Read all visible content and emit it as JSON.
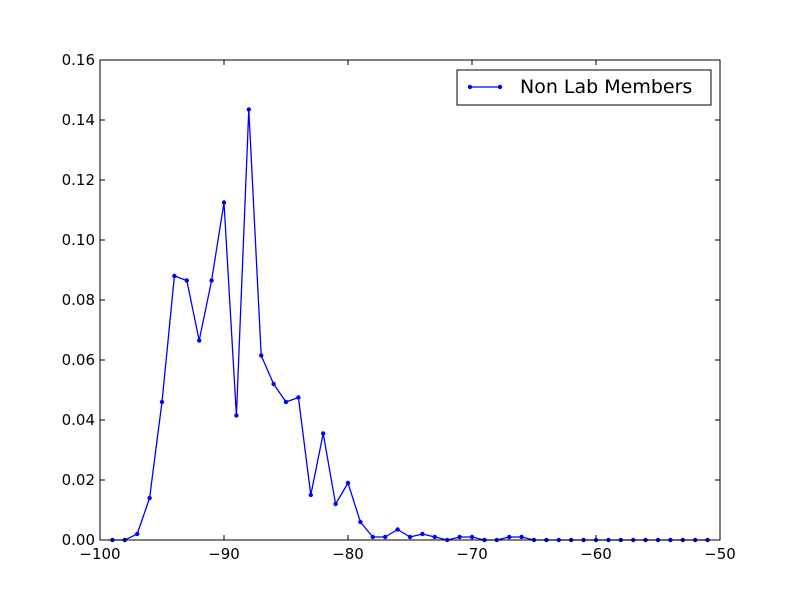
{
  "chart_data": {
    "type": "line",
    "title": "",
    "xlabel": "",
    "ylabel": "",
    "xlim": [
      -100,
      -50
    ],
    "ylim": [
      0.0,
      0.16
    ],
    "x_ticks": [
      -100,
      -90,
      -80,
      -70,
      -60,
      -50
    ],
    "x_tick_labels": [
      "−100",
      "−90",
      "−80",
      "−70",
      "−60",
      "−50"
    ],
    "y_ticks": [
      0.0,
      0.02,
      0.04,
      0.06,
      0.08,
      0.1,
      0.12,
      0.14,
      0.16
    ],
    "y_tick_labels": [
      "0.00",
      "0.02",
      "0.04",
      "0.06",
      "0.08",
      "0.10",
      "0.12",
      "0.14",
      "0.16"
    ],
    "grid": false,
    "legend_position": "top-right",
    "series": [
      {
        "name": "Non Lab Members",
        "color": "#0000ff",
        "marker": "dot",
        "x": [
          -99,
          -98,
          -97,
          -96,
          -95,
          -94,
          -93,
          -92,
          -91,
          -90,
          -89,
          -88,
          -87,
          -86,
          -85,
          -84,
          -83,
          -82,
          -81,
          -80,
          -79,
          -78,
          -77,
          -76,
          -75,
          -74,
          -73,
          -72,
          -71,
          -70,
          -69,
          -68,
          -67,
          -66,
          -65,
          -64,
          -63,
          -62,
          -61,
          -60,
          -59,
          -58,
          -57,
          -56,
          -55,
          -54,
          -53,
          -52,
          -51
        ],
        "y": [
          0.0,
          0.0,
          0.002,
          0.014,
          0.046,
          0.088,
          0.0865,
          0.0665,
          0.0865,
          0.1125,
          0.0415,
          0.1435,
          0.0615,
          0.052,
          0.046,
          0.0475,
          0.015,
          0.0355,
          0.012,
          0.019,
          0.006,
          0.001,
          0.001,
          0.0035,
          0.001,
          0.002,
          0.001,
          0.0,
          0.001,
          0.001,
          0.0,
          0.0,
          0.001,
          0.001,
          0.0,
          0.0,
          0.0,
          0.0,
          0.0,
          0.0,
          0.0,
          0.0,
          0.0,
          0.0,
          0.0,
          0.0,
          0.0,
          0.0,
          0.0
        ]
      }
    ]
  }
}
